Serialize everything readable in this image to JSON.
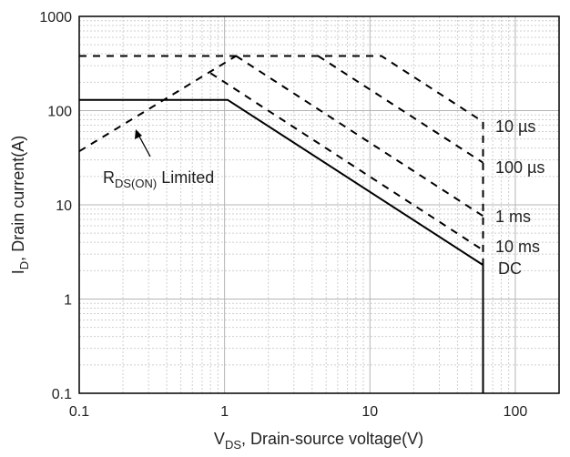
{
  "chart_data": {
    "type": "line",
    "title": "",
    "xlabel": {
      "main": "V",
      "sub": "DS",
      "rest": ", Drain-source voltage(V)"
    },
    "ylabel": {
      "main": "I",
      "sub": "D",
      "rest": ", Drain current(A)"
    },
    "xscale": "log",
    "yscale": "log",
    "xlim": [
      0.1,
      200
    ],
    "ylim": [
      0.1,
      1000
    ],
    "grid": true,
    "xticks": [
      {
        "v": 0.1,
        "label": "0.1"
      },
      {
        "v": 1,
        "label": "1"
      },
      {
        "v": 10,
        "label": "10"
      },
      {
        "v": 100,
        "label": "100"
      }
    ],
    "yticks": [
      {
        "v": 0.1,
        "label": "0.1"
      },
      {
        "v": 1,
        "label": "1"
      },
      {
        "v": 10,
        "label": "10"
      },
      {
        "v": 100,
        "label": "100"
      },
      {
        "v": 1000,
        "label": "1000"
      }
    ],
    "series": [
      {
        "name": "10 µs",
        "style": "dashed",
        "points": [
          [
            0.1,
            380
          ],
          [
            12,
            380
          ],
          [
            60,
            76
          ],
          [
            60,
            2.3
          ]
        ]
      },
      {
        "name": "100 µs",
        "style": "dashed",
        "points": [
          [
            4.4,
            380
          ],
          [
            60,
            28
          ]
        ]
      },
      {
        "name": "1 ms",
        "style": "dashed",
        "points": [
          [
            1.2,
            380
          ],
          [
            60,
            7.6
          ]
        ]
      },
      {
        "name": "10 ms",
        "style": "dashed",
        "points": [
          [
            0.8,
            250
          ],
          [
            60,
            3.3
          ]
        ]
      },
      {
        "name": "DC",
        "style": "solid",
        "points": [
          [
            0.1,
            130
          ],
          [
            1.05,
            130
          ],
          [
            60,
            2.3
          ],
          [
            60,
            0.1
          ]
        ]
      },
      {
        "name": "RDS(ON) Limited",
        "style": "dashed",
        "points": [
          [
            0.1,
            37
          ],
          [
            1.2,
            380
          ]
        ]
      }
    ],
    "annotation": {
      "main": "R",
      "sub": "DS(ON)",
      "rest": " Limited"
    }
  }
}
